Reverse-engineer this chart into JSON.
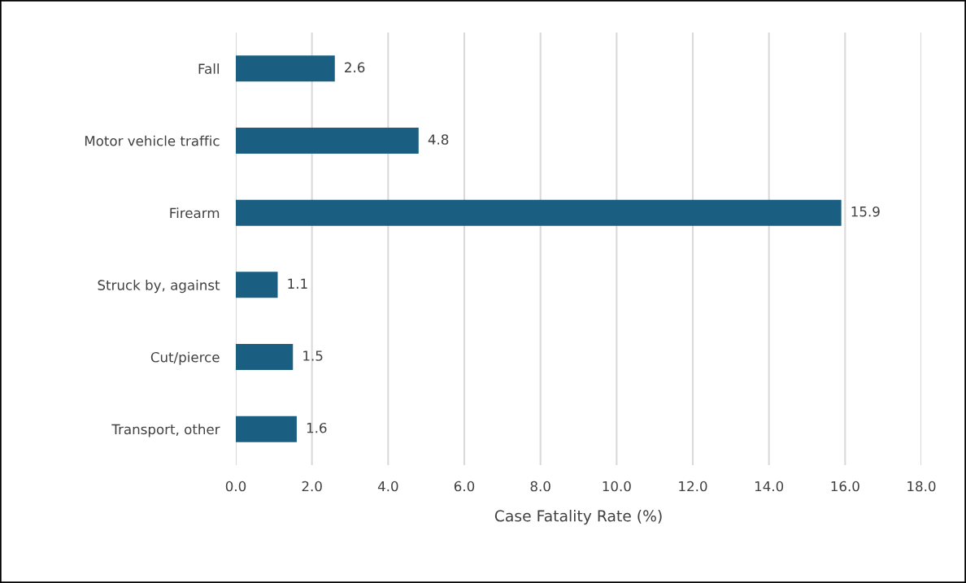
{
  "chart_data": {
    "type": "bar",
    "orientation": "horizontal",
    "xlabel": "Case Fatality Rate (%)",
    "categories": [
      "Fall",
      "Motor vehicle traffic",
      "Firearm",
      "Struck by, against",
      "Cut/pierce",
      "Transport, other"
    ],
    "values": [
      2.6,
      4.8,
      15.9,
      1.1,
      1.5,
      1.6
    ],
    "color": "#1a5f82",
    "data_labels": true,
    "xlim": [
      0,
      18
    ],
    "xticks": [
      {
        "value": 0,
        "label": "0.0"
      },
      {
        "value": 2,
        "label": "2.0"
      },
      {
        "value": 4,
        "label": "4.0"
      },
      {
        "value": 6,
        "label": "6.0"
      },
      {
        "value": 8,
        "label": "8.0"
      },
      {
        "value": 10,
        "label": "10.0"
      },
      {
        "value": 12,
        "label": "12.0"
      },
      {
        "value": 14,
        "label": "14.0"
      },
      {
        "value": 16,
        "label": "16.0"
      },
      {
        "value": 18,
        "label": "18.0"
      }
    ],
    "grid": "x"
  }
}
